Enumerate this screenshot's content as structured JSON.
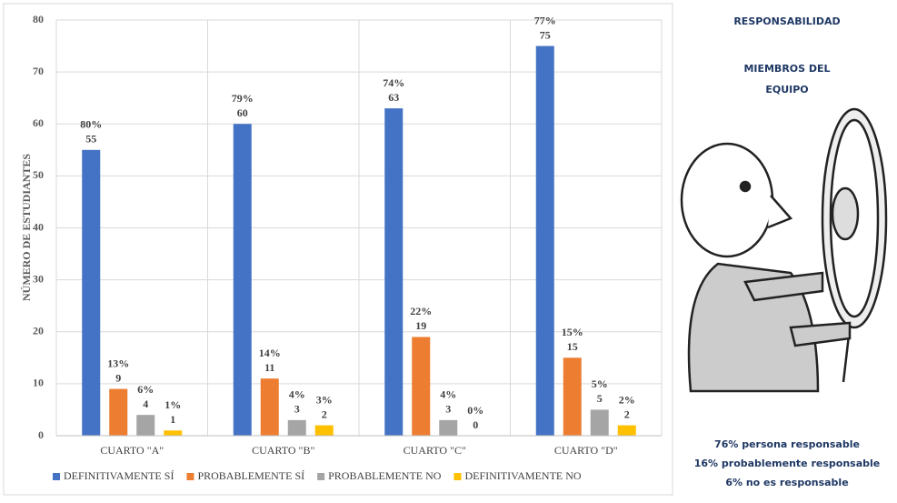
{
  "chart_data": {
    "type": "bar",
    "y_label": "NÚMERO DE ESTUDIANTES",
    "categories": [
      "CUARTO \"A\"",
      "CUARTO \"B\"",
      "CUARTO \"C\"",
      "CUARTO \"D\""
    ],
    "series": [
      {
        "name": "DEFINITIVAMENTE SÍ",
        "color": "#4472c4",
        "values": [
          55,
          60,
          63,
          75
        ],
        "percent_labels": [
          "80%",
          "79%",
          "74%",
          "77%"
        ]
      },
      {
        "name": "PROBABLEMENTE SÍ",
        "color": "#ed7d31",
        "values": [
          9,
          11,
          19,
          15
        ],
        "percent_labels": [
          "13%",
          "14%",
          "22%",
          "15%"
        ]
      },
      {
        "name": "PROBABLEMENTE NO",
        "color": "#a5a5a5",
        "values": [
          4,
          3,
          3,
          5
        ],
        "percent_labels": [
          "6%",
          "4%",
          "4%",
          "5%"
        ]
      },
      {
        "name": "DEFINITIVAMENTE NO",
        "color": "#ffc000",
        "values": [
          1,
          2,
          0,
          2
        ],
        "percent_labels": [
          "1%",
          "3%",
          "0%",
          "2%"
        ]
      }
    ],
    "ylim": [
      0,
      80
    ],
    "yticks": [
      0,
      10,
      20,
      30,
      40,
      50,
      60,
      70,
      80
    ],
    "grid": true,
    "legend": "bottom"
  },
  "panel": {
    "title": "RESPONSABILIDAD",
    "subtitle": [
      "MIEMBROS DEL",
      "EQUIPO"
    ],
    "notes": [
      "76% persona responsable",
      "16% probablemente responsable",
      "6% no es responsable"
    ]
  }
}
